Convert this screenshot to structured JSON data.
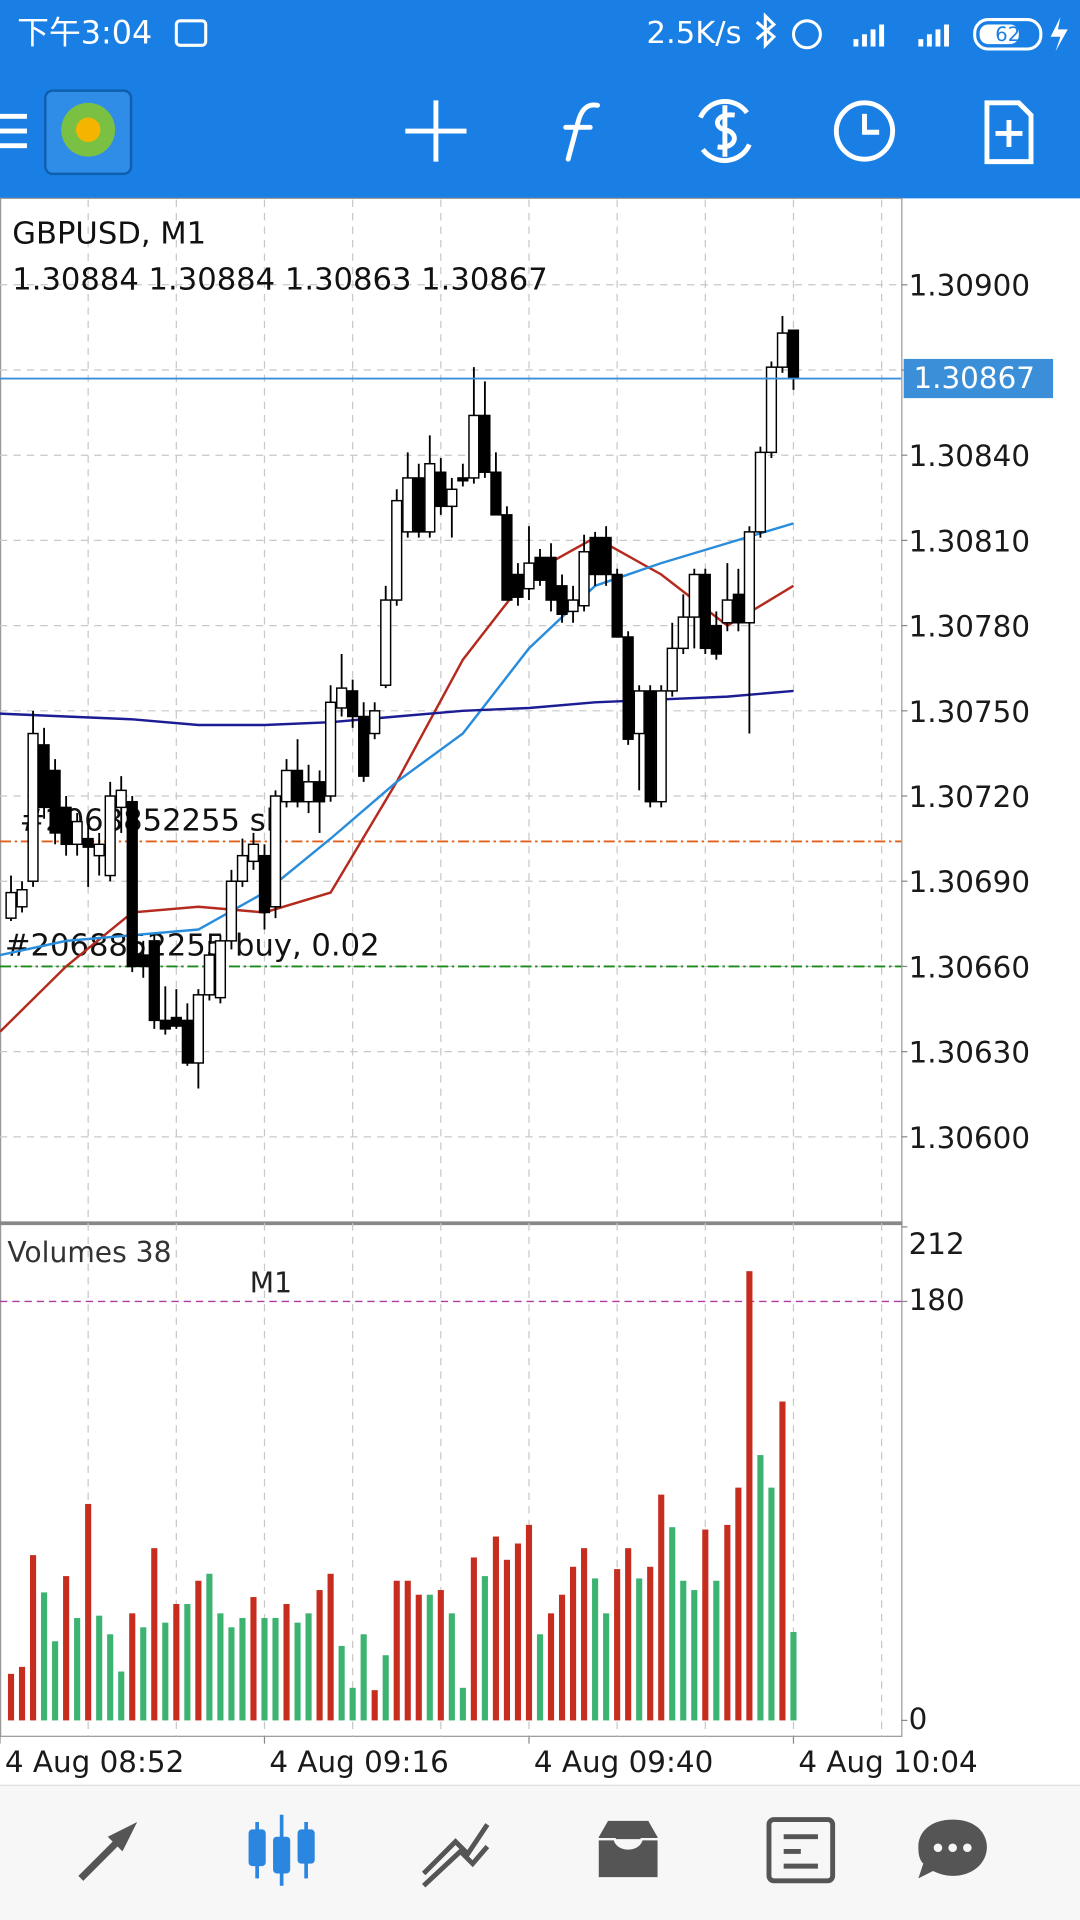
{
  "status_bar": {
    "time": "下午3:04",
    "net_speed": "2.5K/s",
    "battery": "62"
  },
  "chart_data": [
    {
      "type": "candlestick",
      "title": "GBPUSD, M1",
      "open": [
        null,
        1.30677,
        1.30681,
        1.3069,
        1.30738,
        1.30729,
        1.30716,
        1.30703,
        1.30705,
        1.30699,
        1.30692,
        1.30716,
        1.30718,
        1.30664,
        1.30669,
        1.30641,
        1.30642,
        1.30641,
        1.30626,
        1.3065,
        1.30649,
        1.30669,
        1.3069,
        1.30697,
        1.30699,
        1.30681,
        1.30718,
        1.30729,
        1.30718,
        1.30725,
        1.3072,
        1.30751,
        1.30757,
        1.30748,
        1.30742,
        1.30759,
        1.30789,
        1.30813,
        1.30832,
        1.30813,
        1.30834,
        1.30822,
        1.30832,
        1.30832,
        1.30854,
        1.30834,
        1.30819,
        1.30798,
        1.30793,
        1.30804,
        1.30804,
        1.30794,
        1.30785,
        1.30787,
        1.30811,
        1.30811,
        1.30798,
        1.30776,
        1.30742,
        1.30757,
        1.30718,
        1.30757,
        1.30772,
        1.30783,
        1.30798,
        1.3078,
        1.30781,
        1.30791,
        1.30781,
        1.30813,
        1.30841,
        1.30871,
        1.30884
      ],
      "high": [
        null,
        1.30692,
        1.3069,
        1.3075,
        1.30744,
        1.30733,
        1.3072,
        1.30714,
        1.3071,
        1.30707,
        1.30725,
        1.30727,
        1.3072,
        1.30669,
        1.30671,
        1.30653,
        1.30652,
        1.30647,
        1.30652,
        1.30669,
        1.30671,
        1.30694,
        1.30705,
        1.30707,
        1.30703,
        1.30722,
        1.30733,
        1.3074,
        1.30731,
        1.30729,
        1.30759,
        1.3077,
        1.30761,
        1.30753,
        1.30753,
        1.30794,
        1.30828,
        1.30841,
        1.30837,
        1.30847,
        1.30839,
        1.30832,
        1.30837,
        1.30871,
        1.30866,
        1.30841,
        1.30822,
        1.30802,
        1.30815,
        1.30807,
        1.30809,
        1.30798,
        1.30794,
        1.30812,
        1.30813,
        1.30815,
        1.308,
        1.30778,
        1.30759,
        1.30759,
        1.30759,
        1.30781,
        1.30791,
        1.308,
        1.308,
        1.30785,
        1.30802,
        1.308,
        1.30815,
        1.30843,
        1.30873,
        1.30889,
        1.30884
      ],
      "low": [
        null,
        1.30676,
        1.30679,
        1.30688,
        1.30712,
        1.30703,
        1.30699,
        1.30699,
        1.30688,
        1.30692,
        1.3069,
        1.30707,
        1.30658,
        1.30656,
        1.30638,
        1.30636,
        1.30638,
        1.30625,
        1.30617,
        1.30648,
        1.30647,
        1.30666,
        1.30688,
        1.30694,
        1.30673,
        1.30677,
        1.30716,
        1.30716,
        1.30714,
        1.30707,
        1.30718,
        1.30748,
        1.30744,
        1.30725,
        1.3074,
        1.30758,
        1.30787,
        1.30811,
        1.30811,
        1.30811,
        1.30819,
        1.30811,
        1.30829,
        1.3083,
        1.30832,
        1.30819,
        1.30789,
        1.30787,
        1.30789,
        1.30794,
        1.30785,
        1.30781,
        1.30781,
        1.30785,
        1.30794,
        1.30794,
        1.30776,
        1.30738,
        1.30722,
        1.30716,
        1.30716,
        1.30755,
        1.3077,
        1.30772,
        1.3077,
        1.30768,
        1.30778,
        1.30778,
        1.30742,
        1.30811,
        1.30839,
        1.30869,
        1.30863
      ],
      "close": [
        null,
        1.30686,
        1.30687,
        1.30742,
        1.30716,
        1.30707,
        1.30703,
        1.30711,
        1.30702,
        1.30703,
        1.3072,
        1.30722,
        1.3066,
        1.3066,
        1.30641,
        1.30638,
        1.30639,
        1.30626,
        1.3065,
        1.30664,
        1.30669,
        1.3069,
        1.30699,
        1.30703,
        1.30679,
        1.3072,
        1.30729,
        1.30718,
        1.30725,
        1.30718,
        1.30753,
        1.30758,
        1.30748,
        1.30727,
        1.3075,
        1.30789,
        1.30824,
        1.30832,
        1.30813,
        1.30837,
        1.30822,
        1.30828,
        1.30831,
        1.30854,
        1.30834,
        1.30819,
        1.30789,
        1.3079,
        1.30802,
        1.30796,
        1.30789,
        1.30784,
        1.30789,
        1.30806,
        1.30798,
        1.30798,
        1.30776,
        1.3074,
        1.30757,
        1.30718,
        1.30757,
        1.30772,
        1.30783,
        1.30798,
        1.30772,
        1.3077,
        1.30789,
        1.30781,
        1.30813,
        1.30841,
        1.30871,
        1.30883,
        1.30867
      ],
      "up_color": "#ffffff",
      "down_color": "#000000",
      "series": [
        {
          "color": "#b52a1e",
          "x": [
            0,
            6,
            12,
            18,
            24,
            30,
            36,
            42,
            48,
            54,
            60,
            66,
            72
          ],
          "values": [
            1.30637,
            1.3066,
            1.30679,
            1.30681,
            1.30679,
            1.30686,
            1.30725,
            1.30768,
            1.30798,
            1.30811,
            1.30798,
            1.3078,
            1.30794
          ]
        },
        {
          "color": "#2a8ddc",
          "x": [
            0,
            6,
            12,
            18,
            24,
            30,
            36,
            42,
            48,
            54,
            60,
            66,
            72
          ],
          "values": [
            1.30664,
            1.30669,
            1.30671,
            1.30673,
            1.30686,
            1.30705,
            1.30725,
            1.30742,
            1.30772,
            1.30794,
            1.30802,
            1.30809,
            1.30816
          ]
        },
        {
          "color": "#1c1c94",
          "x": [
            0,
            6,
            12,
            18,
            24,
            30,
            36,
            42,
            48,
            54,
            60,
            66,
            72
          ],
          "values": [
            1.30749,
            1.30748,
            1.30747,
            1.30745,
            1.30745,
            1.30746,
            1.30748,
            1.3075,
            1.30751,
            1.30753,
            1.30754,
            1.30755,
            1.30757
          ]
        }
      ],
      "levels": [
        {
          "label": "#2068852255 sl",
          "value": 1.30704,
          "color": "#e0601e"
        },
        {
          "label": "#2068852255 buy, 0.02",
          "value": 1.3066,
          "color": "#1b8a1b"
        }
      ],
      "current_price_color": "#3a8fd8",
      "ylim": [
        1.3057,
        1.3093
      ],
      "yticks": [
        {
          "value": 1.306,
          "label": "1.30600"
        },
        {
          "value": 1.3063,
          "label": "1.30630"
        },
        {
          "value": 1.3066,
          "label": "1.30660"
        },
        {
          "value": 1.3069,
          "label": "1.30690"
        },
        {
          "value": 1.3072,
          "label": "1.30720"
        },
        {
          "value": 1.3075,
          "label": "1.30750"
        },
        {
          "value": 1.3078,
          "label": "1.30780"
        },
        {
          "value": 1.3081,
          "label": "1.30810"
        },
        {
          "value": 1.3084,
          "label": "1.30840"
        },
        {
          "value": 1.3087,
          "label": "1.30870"
        },
        {
          "value": 1.309,
          "label": "1.30900"
        }
      ],
      "grid": true
    },
    {
      "type": "bar",
      "title": "Volumes 38",
      "annotation": "M1",
      "categories": [
        "4 Aug 08:52",
        null,
        null,
        null,
        null,
        null,
        null,
        null,
        null,
        null,
        null,
        null,
        null,
        null,
        null,
        null,
        null,
        null,
        null,
        null,
        null,
        null,
        null,
        null,
        "4 Aug 09:16",
        null,
        null,
        null,
        null,
        null,
        null,
        null,
        null,
        null,
        null,
        null,
        null,
        null,
        null,
        null,
        null,
        null,
        null,
        null,
        null,
        null,
        null,
        null,
        "4 Aug 09:40",
        null,
        null,
        null,
        null,
        null,
        null,
        null,
        null,
        null,
        null,
        null,
        null,
        null,
        null,
        null,
        null,
        null,
        null,
        null,
        null,
        null,
        null,
        null,
        "4 Aug 10:04"
      ],
      "values": [
        null,
        20,
        23,
        71,
        55,
        34,
        62,
        44,
        93,
        45,
        37,
        21,
        46,
        40,
        74,
        42,
        50,
        50,
        60,
        63,
        46,
        40,
        44,
        53,
        44,
        44,
        50,
        42,
        46,
        56,
        63,
        32,
        14,
        37,
        13,
        28,
        60,
        60,
        54,
        54,
        56,
        46,
        14,
        70,
        62,
        79,
        69,
        76,
        84,
        37,
        46,
        54,
        66,
        74,
        61,
        46,
        65,
        74,
        61,
        66,
        97,
        83,
        60,
        56,
        82,
        60,
        84,
        100,
        193,
        114,
        100,
        137,
        38
      ],
      "colors": [
        null,
        "#c62d1f",
        "#c62d1f",
        "#c62d1f",
        "#3cb371",
        "#3cb371",
        "#c62d1f",
        "#3cb371",
        "#c62d1f",
        "#3cb371",
        "#3cb371",
        "#3cb371",
        "#c62d1f",
        "#3cb371",
        "#c62d1f",
        "#3cb371",
        "#c62d1f",
        "#3cb371",
        "#c62d1f",
        "#3cb371",
        "#3cb371",
        "#3cb371",
        "#3cb371",
        "#c62d1f",
        "#3cb371",
        "#3cb371",
        "#c62d1f",
        "#3cb371",
        "#3cb371",
        "#c62d1f",
        "#c62d1f",
        "#3cb371",
        "#3cb371",
        "#3cb371",
        "#c62d1f",
        "#3cb371",
        "#c62d1f",
        "#c62d1f",
        "#c62d1f",
        "#3cb371",
        "#c62d1f",
        "#3cb371",
        "#3cb371",
        "#c62d1f",
        "#3cb371",
        "#c62d1f",
        "#c62d1f",
        "#c62d1f",
        "#c62d1f",
        "#3cb371",
        "#c62d1f",
        "#c62d1f",
        "#c62d1f",
        "#c62d1f",
        "#3cb371",
        "#3cb371",
        "#c62d1f",
        "#c62d1f",
        "#3cb371",
        "#c62d1f",
        "#c62d1f",
        "#3cb371",
        "#3cb371",
        "#3cb371",
        "#c62d1f",
        "#3cb371",
        "#c62d1f",
        "#c62d1f",
        "#c62d1f",
        "#3cb371",
        "#3cb371",
        "#c62d1f",
        "#3cb371"
      ],
      "level": 180,
      "level_color": "#b03aa0",
      "ylim": [
        0,
        212
      ],
      "yticks": [
        0,
        180,
        212
      ]
    }
  ]
}
